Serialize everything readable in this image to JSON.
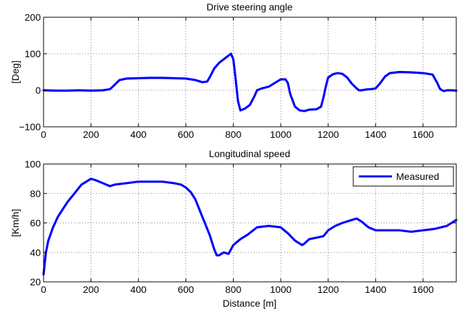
{
  "chart_data": [
    {
      "type": "line",
      "title": "Drive steering angle",
      "xlabel": "",
      "ylabel": "[Deg]",
      "xlim": [
        0,
        1740
      ],
      "ylim": [
        -100,
        200
      ],
      "xticks": [
        0,
        200,
        400,
        600,
        800,
        1000,
        1200,
        1400,
        1600
      ],
      "yticks": [
        -100,
        0,
        100,
        200
      ],
      "grid": true,
      "line_color": "#0000ff",
      "series": [
        {
          "x": [
            0,
            50,
            100,
            150,
            200,
            250,
            280,
            300,
            320,
            350,
            400,
            450,
            500,
            550,
            600,
            640,
            670,
            690,
            700,
            720,
            740,
            760,
            780,
            790,
            800,
            810,
            820,
            830,
            850,
            870,
            890,
            900,
            920,
            950,
            980,
            1000,
            1020,
            1030,
            1040,
            1060,
            1080,
            1100,
            1120,
            1150,
            1170,
            1180,
            1190,
            1200,
            1220,
            1240,
            1260,
            1280,
            1300,
            1320,
            1330,
            1340,
            1360,
            1380,
            1400,
            1420,
            1440,
            1460,
            1500,
            1550,
            1600,
            1640,
            1660,
            1670,
            1680,
            1690,
            1700,
            1720,
            1740
          ],
          "values": [
            0,
            -1,
            -1,
            0,
            -1,
            0,
            3,
            15,
            28,
            32,
            33,
            34,
            34,
            33,
            32,
            28,
            22,
            24,
            35,
            60,
            75,
            85,
            95,
            100,
            85,
            30,
            -30,
            -55,
            -50,
            -40,
            -15,
            0,
            5,
            10,
            22,
            30,
            30,
            20,
            -10,
            -45,
            -55,
            -57,
            -53,
            -52,
            -45,
            -20,
            10,
            35,
            44,
            47,
            45,
            35,
            18,
            5,
            0,
            0,
            2,
            3,
            5,
            20,
            38,
            47,
            50,
            49,
            47,
            43,
            20,
            5,
            0,
            -2,
            0,
            0,
            -1
          ]
        }
      ]
    },
    {
      "type": "line",
      "title": "Longitudinal speed",
      "xlabel": "Distance [m]",
      "ylabel": "[Km/h]",
      "xlim": [
        0,
        1740
      ],
      "ylim": [
        20,
        100
      ],
      "xticks": [
        0,
        200,
        400,
        600,
        800,
        1000,
        1200,
        1400,
        1600
      ],
      "yticks": [
        20,
        40,
        60,
        80,
        100
      ],
      "grid": true,
      "legend": "top-right",
      "line_color": "#0000ff",
      "series": [
        {
          "name": "Measured",
          "x": [
            0,
            10,
            20,
            40,
            60,
            80,
            100,
            130,
            160,
            190,
            200,
            220,
            250,
            280,
            300,
            350,
            400,
            450,
            500,
            550,
            580,
            600,
            620,
            640,
            660,
            680,
            700,
            720,
            730,
            740,
            760,
            780,
            800,
            830,
            860,
            900,
            950,
            1000,
            1030,
            1060,
            1090,
            1100,
            1120,
            1150,
            1180,
            1200,
            1230,
            1260,
            1300,
            1320,
            1340,
            1370,
            1400,
            1450,
            1500,
            1550,
            1600,
            1650,
            1700,
            1740
          ],
          "values": [
            25,
            40,
            48,
            57,
            64,
            69,
            74,
            80,
            86,
            89,
            90,
            89,
            87,
            85,
            86,
            87,
            88,
            88,
            88,
            87,
            86,
            84,
            81,
            76,
            68,
            60,
            52,
            42,
            38,
            38,
            40,
            39,
            45,
            49,
            52,
            57,
            58,
            57,
            53,
            48,
            45,
            46,
            49,
            50,
            51,
            55,
            58,
            60,
            62,
            63,
            61,
            57,
            55,
            55,
            55,
            54,
            55,
            56,
            58,
            62
          ]
        }
      ]
    }
  ]
}
